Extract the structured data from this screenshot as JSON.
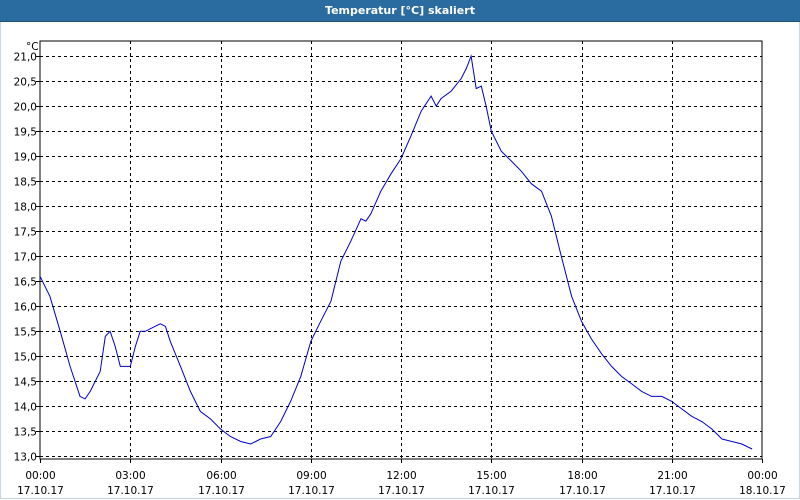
{
  "window": {
    "title": "Temperatur [°C] skaliert"
  },
  "chart_data": {
    "type": "line",
    "title": "Temperatur [°C] skaliert",
    "ylabel": "°C",
    "xlabel": "",
    "ylim": [
      12.95,
      21.3
    ],
    "grid": true,
    "yticks": [
      "13,0",
      "13,5",
      "14,0",
      "14,5",
      "15,0",
      "15,5",
      "16,0",
      "16,5",
      "17,0",
      "17,5",
      "18,0",
      "18,5",
      "19,0",
      "19,5",
      "20,0",
      "20,5",
      "21,0"
    ],
    "ytick_values": [
      13.0,
      13.5,
      14.0,
      14.5,
      15.0,
      15.5,
      16.0,
      16.5,
      17.0,
      17.5,
      18.0,
      18.5,
      19.0,
      19.5,
      20.0,
      20.5,
      21.0
    ],
    "xlim": [
      0,
      24
    ],
    "xticks": [
      {
        "time": "00:00",
        "date": "17.10.17",
        "hour": 0
      },
      {
        "time": "03:00",
        "date": "17.10.17",
        "hour": 3
      },
      {
        "time": "06:00",
        "date": "17.10.17",
        "hour": 6
      },
      {
        "time": "09:00",
        "date": "17.10.17",
        "hour": 9
      },
      {
        "time": "12:00",
        "date": "17.10.17",
        "hour": 12
      },
      {
        "time": "15:00",
        "date": "17.10.17",
        "hour": 15
      },
      {
        "time": "18:00",
        "date": "17.10.17",
        "hour": 18
      },
      {
        "time": "21:00",
        "date": "17.10.17",
        "hour": 21
      },
      {
        "time": "00:00",
        "date": "18.10.17",
        "hour": 24
      }
    ],
    "series": [
      {
        "color": "#0000cc",
        "x": [
          0,
          0.33,
          0.67,
          1.0,
          1.33,
          1.5,
          1.67,
          2.0,
          2.17,
          2.33,
          2.5,
          2.67,
          3.0,
          3.17,
          3.33,
          3.5,
          3.83,
          4.0,
          4.17,
          4.33,
          4.67,
          5.0,
          5.33,
          5.67,
          6.0,
          6.33,
          6.67,
          7.0,
          7.17,
          7.33,
          7.67,
          8.0,
          8.33,
          8.67,
          9.0,
          9.33,
          9.67,
          10.0,
          10.33,
          10.67,
          10.83,
          11.0,
          11.33,
          11.67,
          12.0,
          12.33,
          12.67,
          13.0,
          13.17,
          13.33,
          13.67,
          14.0,
          14.17,
          14.33,
          14.5,
          14.67,
          14.83,
          15.0,
          15.33,
          15.67,
          16.0,
          16.33,
          16.67,
          17.0,
          17.33,
          17.67,
          18.0,
          18.33,
          18.67,
          19.0,
          19.33,
          19.67,
          20.0,
          20.33,
          20.67,
          21.0,
          21.33,
          21.67,
          22.0,
          22.33,
          22.67,
          23.0,
          23.33,
          23.67
        ],
        "y": [
          16.6,
          16.2,
          15.5,
          14.8,
          14.2,
          14.15,
          14.3,
          14.7,
          15.4,
          15.5,
          15.2,
          14.8,
          14.8,
          15.2,
          15.5,
          15.5,
          15.6,
          15.65,
          15.6,
          15.3,
          14.8,
          14.3,
          13.9,
          13.75,
          13.55,
          13.4,
          13.3,
          13.25,
          13.3,
          13.35,
          13.4,
          13.7,
          14.1,
          14.6,
          15.3,
          15.7,
          16.1,
          16.9,
          17.3,
          17.75,
          17.7,
          17.85,
          18.3,
          18.65,
          18.95,
          19.4,
          19.9,
          20.2,
          20.0,
          20.15,
          20.3,
          20.55,
          20.75,
          21.0,
          20.35,
          20.4,
          20.0,
          19.5,
          19.1,
          18.9,
          18.7,
          18.45,
          18.3,
          17.8,
          17.0,
          16.2,
          15.7,
          15.35,
          15.05,
          14.8,
          14.6,
          14.45,
          14.3,
          14.2,
          14.2,
          14.1,
          13.95,
          13.8,
          13.7,
          13.55,
          13.35,
          13.3,
          13.25,
          13.15
        ]
      }
    ]
  }
}
